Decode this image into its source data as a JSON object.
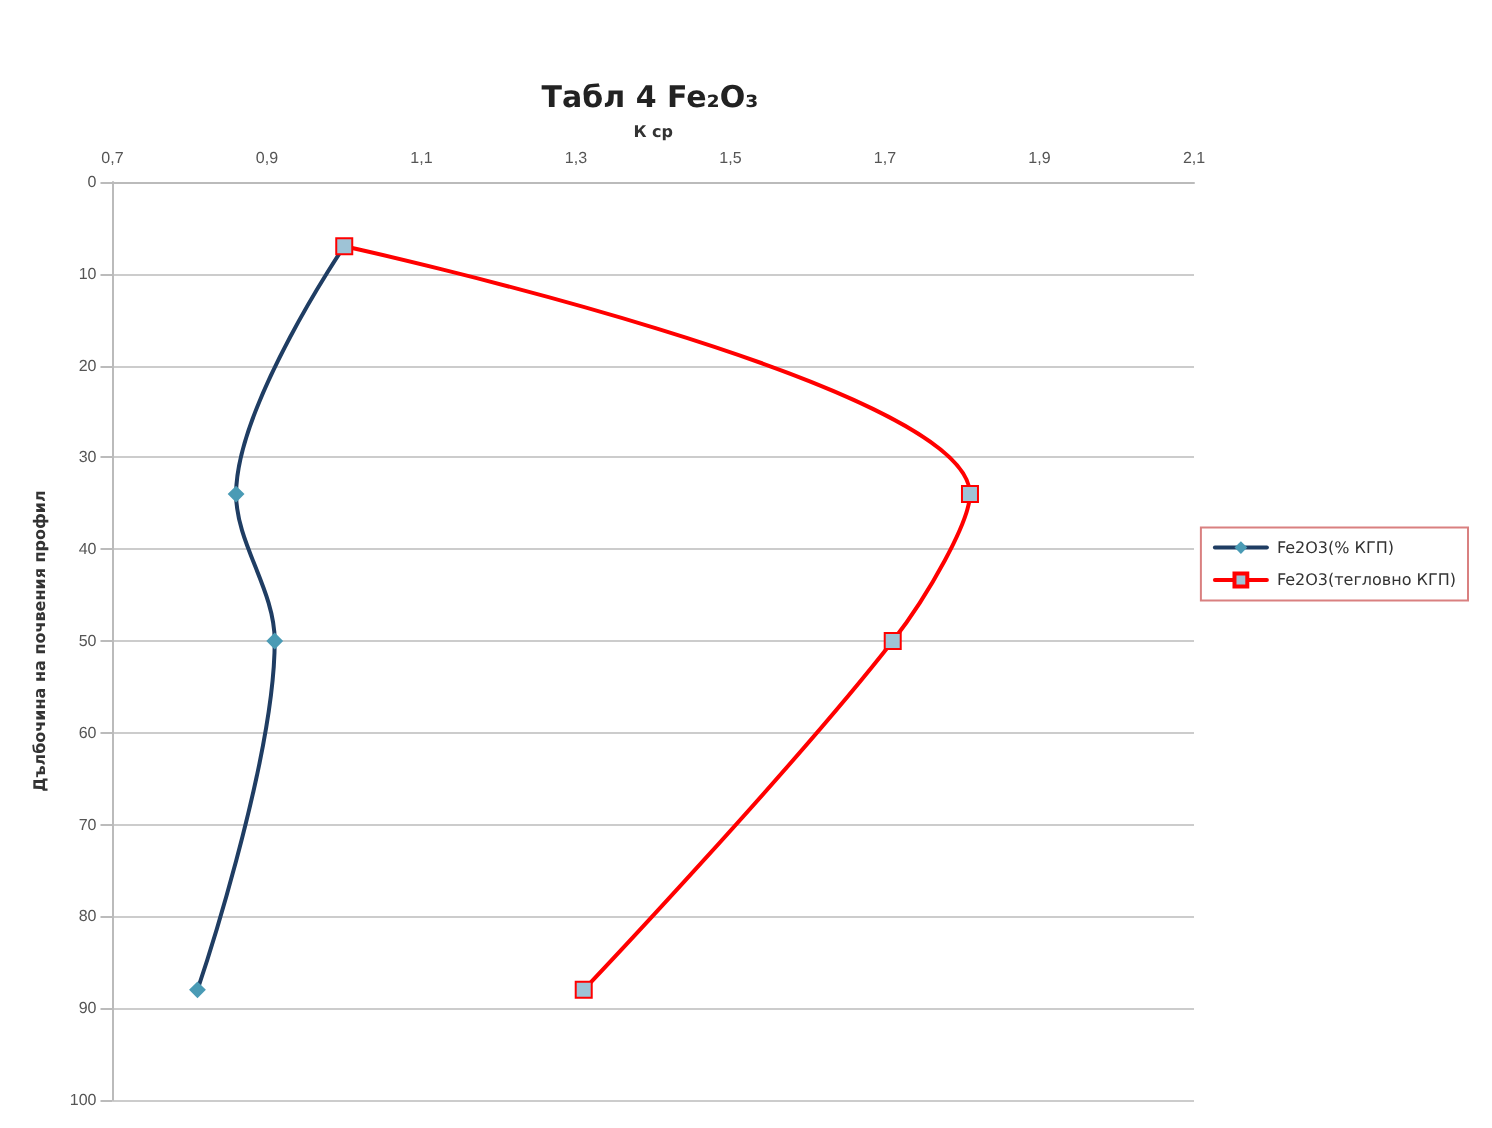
{
  "chart_data": {
    "type": "line",
    "title": "Табл 4 Fe₂O₃",
    "xlabel": "К ср",
    "ylabel": "Дълбочина на почвения профил",
    "series": [
      {
        "name": "Fe2O3(% КГП)",
        "color": "#1f3d63",
        "marker": "diamond",
        "x": [
          1.0,
          0.86,
          0.91,
          0.81
        ],
        "values": [
          7,
          34,
          50,
          88
        ]
      },
      {
        "name": "Fe2O3(тегловно КГП)",
        "color": "#ff0000",
        "marker": "square",
        "x": [
          1.0,
          1.81,
          1.71,
          1.31
        ],
        "values": [
          7,
          34,
          50,
          88
        ]
      }
    ],
    "xlim": [
      0.7,
      2.1
    ],
    "xticks": [
      {
        "value": 0.7,
        "label": "0,7"
      },
      {
        "value": 0.9,
        "label": "0,9"
      },
      {
        "value": 1.1,
        "label": "1,1"
      },
      {
        "value": 1.3,
        "label": "1,3"
      },
      {
        "value": 1.5,
        "label": "1,5"
      },
      {
        "value": 1.7,
        "label": "1,7"
      },
      {
        "value": 1.9,
        "label": "1,9"
      },
      {
        "value": 2.1,
        "label": "2,1"
      }
    ],
    "ylim": [
      100,
      0
    ],
    "yticks": [
      0,
      10,
      20,
      30,
      40,
      50,
      60,
      70,
      80,
      90,
      100
    ],
    "grid": "y",
    "legend": "right"
  }
}
